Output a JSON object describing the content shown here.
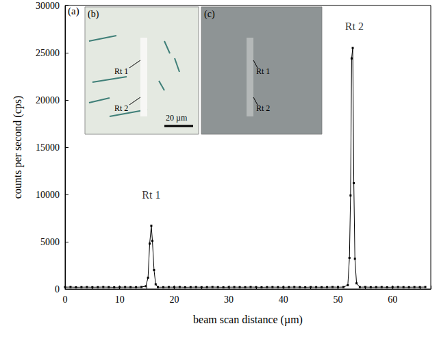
{
  "chart_data": {
    "type": "line",
    "panel_label": "(a)",
    "x_label": "beam scan distance (µm)",
    "y_label": "counts per second (cps)",
    "x": [
      0,
      1,
      2,
      3,
      4,
      5,
      6,
      7,
      8,
      9,
      10,
      11,
      12,
      13,
      14,
      14.8,
      15.2,
      15.5,
      15.8,
      16.0,
      16.3,
      16.6,
      17,
      18,
      19,
      20,
      21,
      22,
      23,
      24,
      25,
      26,
      27,
      28,
      29,
      30,
      31,
      32,
      33,
      34,
      35,
      36,
      37,
      38,
      39,
      40,
      41,
      42,
      43,
      44,
      45,
      46,
      47,
      48,
      49,
      50,
      51,
      51.8,
      52.1,
      52.3,
      52.5,
      52.7,
      52.9,
      53.1,
      53.4,
      54,
      55,
      56,
      57,
      58,
      59,
      60,
      61,
      62,
      63,
      64,
      65,
      66
    ],
    "values": [
      200,
      210,
      190,
      200,
      205,
      195,
      200,
      210,
      200,
      190,
      200,
      205,
      200,
      195,
      210,
      300,
      1200,
      4800,
      6700,
      5100,
      2000,
      500,
      200,
      195,
      205,
      200,
      210,
      190,
      200,
      205,
      195,
      200,
      210,
      200,
      190,
      200,
      205,
      200,
      195,
      210,
      200,
      190,
      200,
      205,
      200,
      195,
      200,
      210,
      200,
      190,
      205,
      200,
      195,
      200,
      210,
      200,
      205,
      400,
      3300,
      9900,
      24400,
      25500,
      11200,
      3200,
      600,
      200,
      210,
      195,
      200,
      205,
      190,
      200,
      210,
      200,
      195,
      205,
      200,
      210
    ],
    "color": "#000000",
    "marker": "square",
    "line_style": "solid",
    "grid": false,
    "xlim": [
      0,
      67
    ],
    "xticks": [
      0,
      10,
      20,
      30,
      40,
      50,
      60
    ],
    "ylim": [
      0,
      30000
    ],
    "yticks": [
      0,
      5000,
      10000,
      15000,
      20000,
      25000,
      30000
    ],
    "annotations": [
      {
        "text": "Rt 1",
        "x": 15.8,
        "y": 10000
      },
      {
        "text": "Rt 2",
        "x": 53,
        "y": 27800
      }
    ],
    "insets": [
      {
        "label": "(b)",
        "annotations": [
          "Rt 1",
          "Rt 2"
        ],
        "scale_bar": "20 µm"
      },
      {
        "label": "(c)",
        "annotations": [
          "Rt 1",
          "Rt 2"
        ]
      }
    ]
  }
}
